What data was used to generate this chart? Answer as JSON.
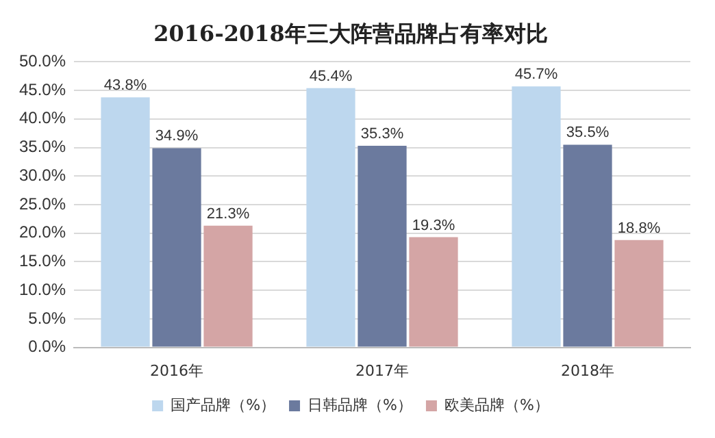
{
  "chart_data": {
    "type": "bar",
    "title": "2016-2018年三大阵营品牌占有率对比",
    "categories": [
      "2016年",
      "2017年",
      "2018年"
    ],
    "series": [
      {
        "name": "国产品牌（%）",
        "color": "#bdd7ee",
        "values": [
          43.8,
          45.4,
          45.7
        ],
        "value_labels": [
          "43.8%",
          "45.4%",
          "45.7%"
        ]
      },
      {
        "name": "日韩品牌（%）",
        "color": "#6b7a9e",
        "values": [
          34.9,
          35.3,
          35.5
        ],
        "value_labels": [
          "34.9%",
          "35.3%",
          "35.5%"
        ]
      },
      {
        "name": "欧美品牌（%）",
        "color": "#d4a5a5",
        "values": [
          21.3,
          19.3,
          18.8
        ],
        "value_labels": [
          "21.3%",
          "19.3%",
          "18.8%"
        ]
      }
    ],
    "ylim": [
      0,
      50
    ],
    "yticks": [
      {
        "value": 0,
        "label": "0.0%"
      },
      {
        "value": 5,
        "label": "5.0%"
      },
      {
        "value": 10,
        "label": "10.0%"
      },
      {
        "value": 15,
        "label": "15.0%"
      },
      {
        "value": 20,
        "label": "20.0%"
      },
      {
        "value": 25,
        "label": "25.0%"
      },
      {
        "value": 30,
        "label": "30.0%"
      },
      {
        "value": 35,
        "label": "35.0%"
      },
      {
        "value": 40,
        "label": "40.0%"
      },
      {
        "value": 45,
        "label": "45.0%"
      },
      {
        "value": 50,
        "label": "50.0%"
      }
    ],
    "grid": "y",
    "legend": "bottom"
  }
}
